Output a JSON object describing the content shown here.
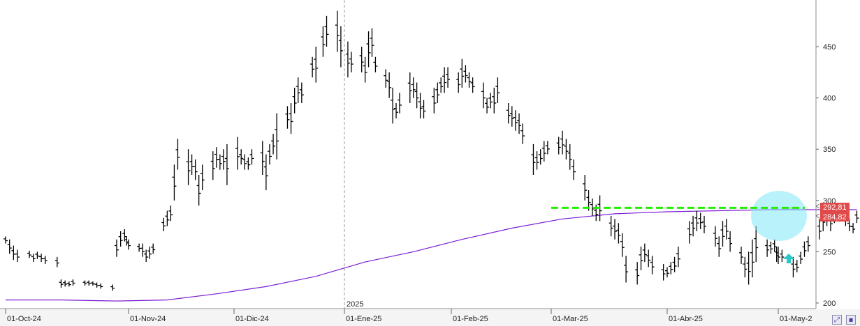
{
  "chart_data": {
    "type": "line",
    "ohlc_points": [
      [
        "2024-10-01",
        265,
        258
      ],
      [
        "2024-10-02",
        262,
        248
      ],
      [
        "2024-10-03",
        256,
        242
      ],
      [
        "2024-10-04",
        252,
        240
      ],
      [
        "2024-10-07",
        251,
        244
      ],
      [
        "2024-10-08",
        248,
        240
      ],
      [
        "2024-10-09",
        250,
        243
      ],
      [
        "2024-10-10",
        248,
        240
      ],
      [
        "2024-10-11",
        246,
        238
      ],
      [
        "2024-10-14",
        245,
        235
      ],
      [
        "2024-10-15",
        223,
        215
      ],
      [
        "2024-10-16",
        222,
        216
      ],
      [
        "2024-10-17",
        221,
        216
      ],
      [
        "2024-10-18",
        223,
        217
      ],
      [
        "2024-10-21",
        222,
        217
      ],
      [
        "2024-10-22",
        222,
        217
      ],
      [
        "2024-10-23",
        221,
        217
      ],
      [
        "2024-10-24",
        220,
        215
      ],
      [
        "2024-10-25",
        219,
        214
      ],
      [
        "2024-10-28",
        218,
        212
      ],
      [
        "2024-10-29",
        262,
        245
      ],
      [
        "2024-10-30",
        270,
        255
      ],
      [
        "2024-10-31",
        272,
        260
      ],
      [
        "2024-10-31b",
        265,
        256
      ],
      [
        "2024-11-01",
        262,
        252
      ],
      [
        "2024-11-04",
        258,
        250
      ],
      [
        "2024-11-05",
        258,
        245
      ],
      [
        "2024-11-06",
        252,
        240
      ],
      [
        "2024-11-07",
        255,
        243
      ],
      [
        "2024-11-08",
        258,
        248
      ],
      [
        "2024-11-11",
        283,
        270
      ],
      [
        "2024-11-12",
        290,
        275
      ],
      [
        "2024-11-13",
        295,
        280
      ],
      [
        "2024-11-14",
        335,
        300
      ],
      [
        "2024-11-15",
        360,
        330
      ],
      [
        "2024-11-18",
        350,
        315
      ],
      [
        "2024-11-19",
        345,
        325
      ],
      [
        "2024-11-20",
        340,
        320
      ],
      [
        "2024-11-21",
        325,
        295
      ],
      [
        "2024-11-22",
        335,
        310
      ],
      [
        "2024-11-25",
        348,
        320
      ],
      [
        "2024-11-26",
        352,
        332
      ],
      [
        "2024-11-27",
        345,
        330
      ],
      [
        "2024-11-28",
        350,
        330
      ],
      [
        "2024-11-29",
        355,
        315
      ],
      [
        "2024-12-02",
        362,
        330
      ],
      [
        "2024-12-03",
        350,
        335
      ],
      [
        "2024-12-04",
        345,
        330
      ],
      [
        "2024-12-05",
        342,
        330
      ],
      [
        "2024-12-06",
        350,
        335
      ],
      [
        "2024-12-09",
        358,
        325
      ],
      [
        "2024-12-10",
        345,
        310
      ],
      [
        "2024-12-11",
        355,
        335
      ],
      [
        "2024-12-12",
        365,
        345
      ],
      [
        "2024-12-13",
        385,
        340
      ],
      [
        "2024-12-16",
        392,
        370
      ],
      [
        "2024-12-17",
        395,
        365
      ],
      [
        "2024-12-18",
        410,
        385
      ],
      [
        "2024-12-19",
        420,
        395
      ],
      [
        "2024-12-20",
        415,
        395
      ],
      [
        "2024-12-23",
        440,
        420
      ],
      [
        "2024-12-24",
        450,
        415
      ],
      [
        "2024-12-26",
        470,
        440
      ],
      [
        "2024-12-27",
        480,
        450
      ],
      [
        "2024-12-30",
        485,
        445
      ],
      [
        "2024-12-31",
        470,
        430
      ],
      [
        "2025-01-02",
        455,
        420
      ],
      [
        "2025-01-03",
        445,
        425
      ],
      [
        "2025-01-06",
        450,
        425
      ],
      [
        "2025-01-07",
        440,
        415
      ],
      [
        "2025-01-08",
        465,
        430
      ],
      [
        "2025-01-09",
        468,
        440
      ],
      [
        "2025-01-10",
        440,
        425
      ],
      [
        "2025-01-13",
        428,
        410
      ],
      [
        "2025-01-14",
        425,
        400
      ],
      [
        "2025-01-15",
        410,
        375
      ],
      [
        "2025-01-16",
        395,
        380
      ],
      [
        "2025-01-17",
        405,
        385
      ],
      [
        "2025-01-20",
        425,
        395
      ],
      [
        "2025-01-21",
        420,
        400
      ],
      [
        "2025-01-22",
        415,
        390
      ],
      [
        "2025-01-23",
        405,
        380
      ],
      [
        "2025-01-24",
        398,
        380
      ],
      [
        "2025-01-27",
        410,
        385
      ],
      [
        "2025-01-28",
        415,
        395
      ],
      [
        "2025-01-29",
        420,
        405
      ],
      [
        "2025-01-30",
        430,
        405
      ],
      [
        "2025-01-31",
        430,
        410
      ],
      [
        "2025-02-03",
        425,
        405
      ],
      [
        "2025-02-04",
        438,
        410
      ],
      [
        "2025-02-05",
        432,
        415
      ],
      [
        "2025-02-06",
        425,
        410
      ],
      [
        "2025-02-07",
        420,
        405
      ],
      [
        "2025-02-10",
        415,
        390
      ],
      [
        "2025-02-11",
        400,
        385
      ],
      [
        "2025-02-12",
        405,
        390
      ],
      [
        "2025-02-13",
        410,
        385
      ],
      [
        "2025-02-14",
        420,
        395
      ],
      [
        "2025-02-17",
        395,
        375
      ],
      [
        "2025-02-18",
        392,
        372
      ],
      [
        "2025-02-19",
        388,
        368
      ],
      [
        "2025-02-20",
        385,
        365
      ],
      [
        "2025-02-21",
        375,
        355
      ],
      [
        "2025-02-24",
        355,
        325
      ],
      [
        "2025-02-25",
        348,
        330
      ],
      [
        "2025-02-26",
        350,
        335
      ],
      [
        "2025-02-27",
        358,
        338
      ],
      [
        "2025-02-28",
        358,
        345
      ],
      [
        "2025-03-03",
        362,
        345
      ],
      [
        "2025-03-04",
        368,
        345
      ],
      [
        "2025-03-05",
        360,
        340
      ],
      [
        "2025-03-06",
        355,
        330
      ],
      [
        "2025-03-07",
        340,
        320
      ],
      [
        "2025-03-10",
        325,
        300
      ],
      [
        "2025-03-11",
        310,
        290
      ],
      [
        "2025-03-12",
        302,
        285
      ],
      [
        "2025-03-13",
        296,
        280
      ],
      [
        "2025-03-14",
        305,
        280
      ],
      [
        "2025-03-17",
        285,
        265
      ],
      [
        "2025-03-18",
        282,
        262
      ],
      [
        "2025-03-19",
        278,
        258
      ],
      [
        "2025-03-20",
        268,
        245
      ],
      [
        "2025-03-21",
        246,
        220
      ],
      [
        "2025-03-24",
        240,
        218
      ],
      [
        "2025-03-25",
        255,
        232
      ],
      [
        "2025-03-26",
        258,
        240
      ],
      [
        "2025-03-27",
        252,
        235
      ],
      [
        "2025-03-28",
        246,
        228
      ],
      [
        "2025-03-31",
        238,
        222
      ],
      [
        "2025-04-01",
        235,
        225
      ],
      [
        "2025-04-02",
        240,
        228
      ],
      [
        "2025-04-03",
        245,
        230
      ],
      [
        "2025-04-04",
        255,
        235
      ],
      [
        "2025-04-07",
        280,
        258
      ],
      [
        "2025-04-08",
        285,
        265
      ],
      [
        "2025-04-09",
        290,
        270
      ],
      [
        "2025-04-10",
        288,
        272
      ],
      [
        "2025-04-11",
        285,
        268
      ],
      [
        "2025-04-14",
        275,
        255
      ],
      [
        "2025-04-15",
        265,
        245
      ],
      [
        "2025-04-16",
        280,
        255
      ],
      [
        "2025-04-17",
        282,
        262
      ],
      [
        "2025-04-18",
        270,
        250
      ],
      [
        "2025-04-21",
        255,
        238
      ],
      [
        "2025-04-22",
        245,
        225
      ],
      [
        "2025-04-23",
        250,
        218
      ],
      [
        "2025-04-24",
        262,
        225
      ],
      [
        "2025-04-25",
        275,
        240
      ],
      [
        "2025-04-28",
        262,
        245
      ],
      [
        "2025-04-29",
        260,
        248
      ],
      [
        "2025-04-30",
        262,
        250
      ],
      [
        "2025-04-30b",
        255,
        240
      ],
      [
        "2025-05-01",
        255,
        238
      ],
      [
        "2025-05-02",
        252,
        240
      ],
      [
        "2025-05-05",
        245,
        225
      ],
      [
        "2025-05-06",
        242,
        230
      ],
      [
        "2025-05-07",
        250,
        238
      ],
      [
        "2025-05-08",
        260,
        245
      ],
      [
        "2025-05-09",
        265,
        250
      ],
      [
        "2025-05-12",
        282,
        262
      ],
      [
        "2025-05-13",
        292,
        270
      ],
      [
        "2025-05-14",
        290,
        275
      ],
      [
        "2025-05-15",
        288,
        270
      ],
      [
        "2025-05-16",
        290,
        278
      ],
      [
        "2025-05-19",
        288,
        275
      ],
      [
        "2025-05-20",
        282,
        270
      ],
      [
        "2025-05-21",
        278,
        268
      ],
      [
        "2025-05-22",
        290,
        278
      ]
    ],
    "note_points_are_date_high_low": true,
    "moving_average": [
      [
        "2024-10-01",
        203
      ],
      [
        "2024-10-15",
        203
      ],
      [
        "2024-10-29",
        202
      ],
      [
        "2024-11-12",
        203
      ],
      [
        "2024-11-26",
        209
      ],
      [
        "2024-12-10",
        216
      ],
      [
        "2024-12-24",
        226
      ],
      [
        "2025-01-07",
        240
      ],
      [
        "2025-01-21",
        250
      ],
      [
        "2025-02-04",
        262
      ],
      [
        "2025-02-18",
        273
      ],
      [
        "2025-03-04",
        282
      ],
      [
        "2025-03-18",
        287
      ],
      [
        "2025-04-01",
        289
      ],
      [
        "2025-04-15",
        290
      ],
      [
        "2025-04-29",
        291
      ],
      [
        "2025-05-22",
        291
      ]
    ],
    "horizontal_line": 292.8,
    "y_axis": {
      "ylim": [
        195,
        500
      ],
      "ticks": [
        200,
        250,
        300,
        350,
        400,
        450
      ]
    },
    "x_axis_labels": [
      "01-Oct-24",
      "01-Nov-24",
      "01-Dic-24",
      "01-Ene-25",
      "01-Feb-25",
      "01-Mar-25",
      "01-Abr-25",
      "01-May-2"
    ],
    "year_label": "2025",
    "price_labels": [
      "292,81",
      "284,82"
    ],
    "colors": {
      "bars": "#000000",
      "moving_average": "#7b1fd6",
      "dashed_line": "#22ee00",
      "highlight": "#7fe8f5",
      "arrow": "#27c9c9",
      "price_tag": "#e04a4a"
    },
    "grid": "vertical dashed separators at month starts"
  },
  "toolbar": {
    "icons": [
      "zoom-icon",
      "save-icon"
    ]
  }
}
